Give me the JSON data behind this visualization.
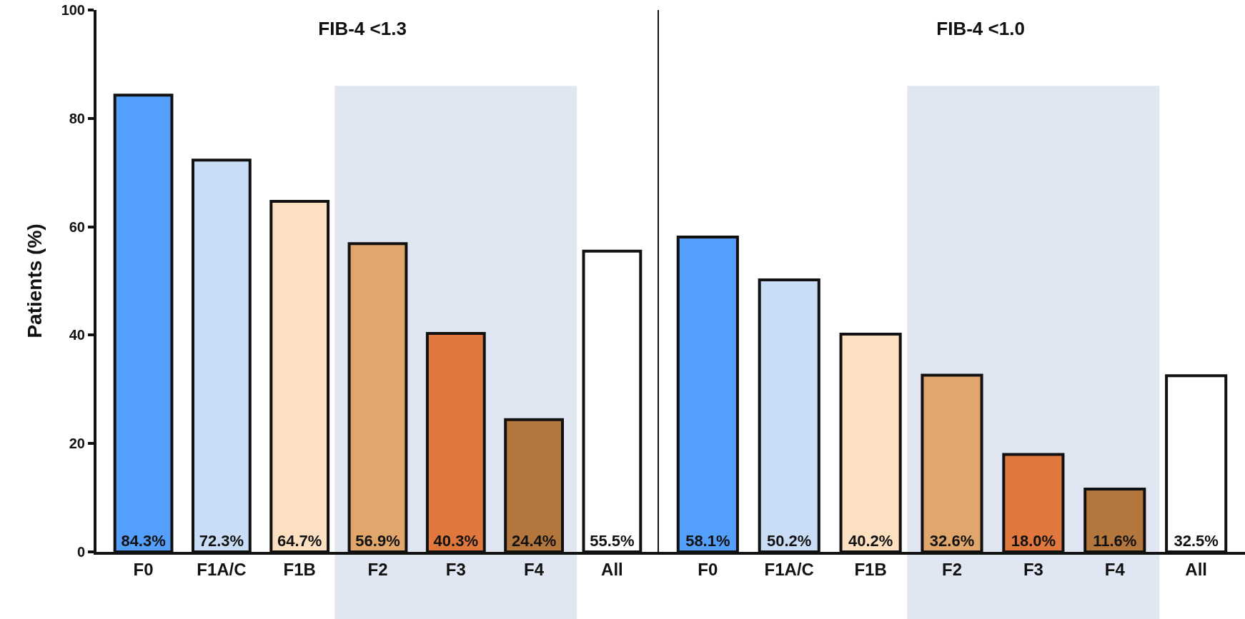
{
  "chart_data": [
    {
      "type": "bar",
      "title": "FIB-4 <1.3",
      "ylabel": "Patients (%)",
      "categories": [
        "F0",
        "F1A/C",
        "F1B",
        "F2",
        "F3",
        "F4",
        "All"
      ],
      "values": [
        84.3,
        72.3,
        64.7,
        56.9,
        40.3,
        24.4,
        55.5
      ],
      "colors": [
        "#559ffc",
        "#c9ddf7",
        "#fde0c1",
        "#e0a66c",
        "#e0783e",
        "#b3773d",
        "#ffffff"
      ],
      "value_labels": [
        "84.3%",
        "72.3%",
        "64.7%",
        "56.9%",
        "40.3%",
        "24.4%",
        "55.5%"
      ],
      "ylim": [
        0,
        100
      ],
      "yticks": [
        0,
        20,
        40,
        60,
        80,
        100
      ],
      "bands": [
        {
          "axis": "x",
          "from": "F2",
          "to": "F4",
          "color": "#e0e7f2"
        }
      ]
    },
    {
      "type": "bar",
      "title": "FIB-4 <1.0",
      "categories": [
        "F0",
        "F1A/C",
        "F1B",
        "F2",
        "F3",
        "F4",
        "All"
      ],
      "values": [
        58.1,
        50.2,
        40.2,
        32.6,
        18.0,
        11.6,
        32.5
      ],
      "colors": [
        "#559ffc",
        "#c9ddf7",
        "#fde0c1",
        "#e0a66c",
        "#e0783e",
        "#b3773d",
        "#ffffff"
      ],
      "value_labels": [
        "58.1%",
        "50.2%",
        "40.2%",
        "32.6%",
        "18.0%",
        "11.6%",
        "32.5%"
      ],
      "ylim": [
        0,
        100
      ],
      "yticks": [
        0,
        20,
        40,
        60,
        80,
        100
      ],
      "tick_labels": "x",
      "bands": [
        {
          "axis": "x",
          "from": "F2",
          "to": "F4",
          "color": "#e0e7f2"
        }
      ]
    }
  ]
}
